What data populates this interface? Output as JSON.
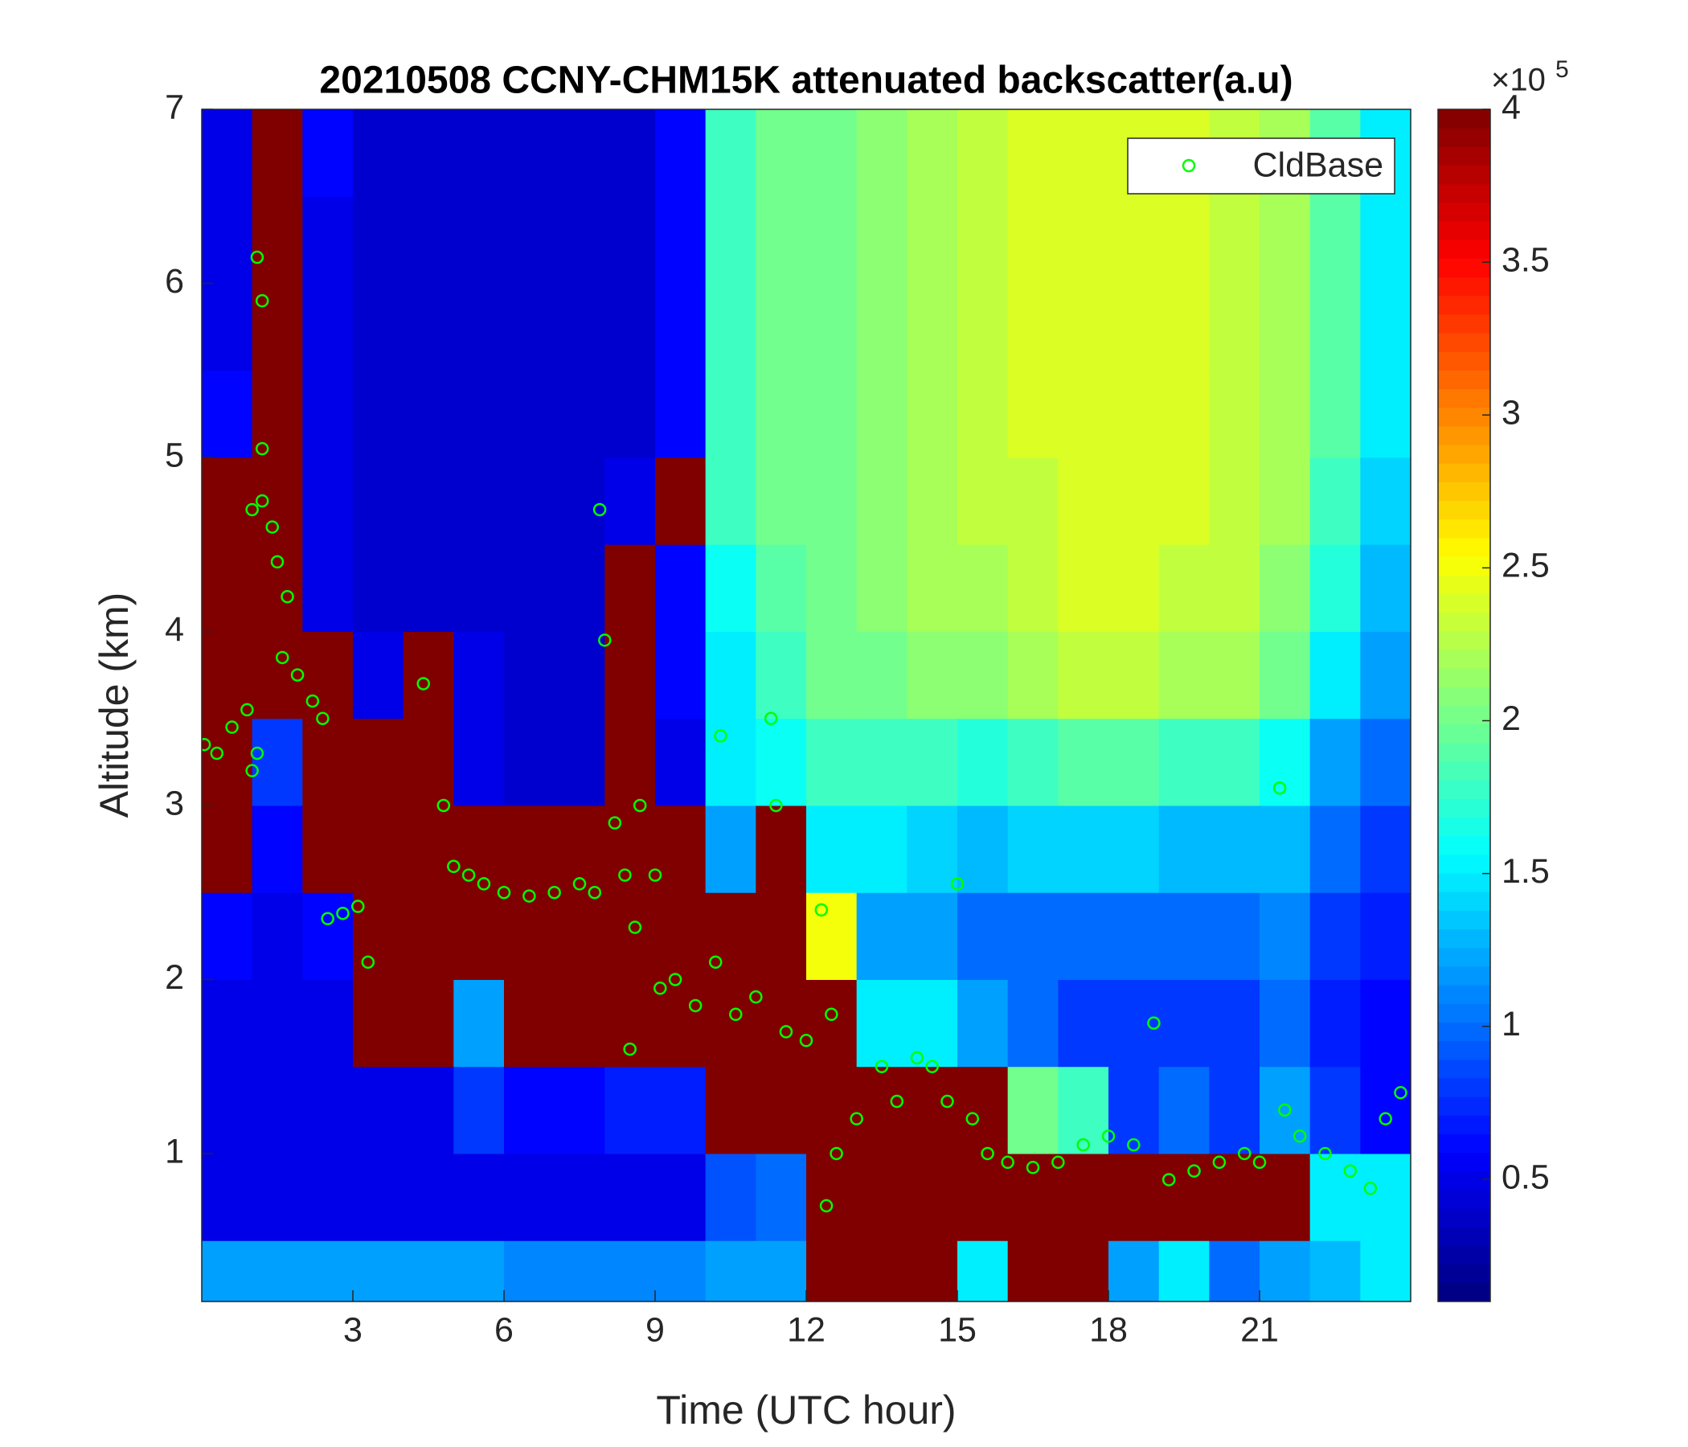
{
  "chart_data": {
    "type": "heatmap",
    "title": "20210508 CCNY-CHM15K attenuated backscatter(a.u)",
    "xlabel": "Time (UTC hour)",
    "ylabel": "Altitude (km)",
    "xlim": [
      0,
      24
    ],
    "ylim": [
      0.15,
      7
    ],
    "xticks": [
      3,
      6,
      9,
      12,
      15,
      18,
      21
    ],
    "yticks": [
      1,
      2,
      3,
      4,
      5,
      6,
      7
    ],
    "colormap": "jet",
    "clim": [
      0.1,
      4
    ],
    "colorbar_ticks": [
      0.5,
      1,
      1.5,
      2,
      2.5,
      3,
      3.5,
      4
    ],
    "colorbar_multiplier": "×10",
    "colorbar_exponent": "5",
    "legend": "upper right",
    "heatmap": {
      "time_edges": [
        0,
        1,
        2,
        3,
        4,
        5,
        6,
        7,
        8,
        9,
        10,
        11,
        12,
        13,
        14,
        15,
        16,
        17,
        18,
        19,
        20,
        21,
        22,
        23,
        24
      ],
      "altitude_edges": [
        0.15,
        0.5,
        1,
        1.5,
        2,
        2.5,
        3,
        3.5,
        4,
        4.5,
        5,
        5.5,
        6,
        6.5,
        7
      ],
      "values": [
        [
          1.2,
          0.5,
          0.5,
          0.5,
          0.6,
          4,
          4,
          4,
          4,
          4,
          0.6,
          0.5,
          0.5,
          0.5
        ],
        [
          1.2,
          0.5,
          0.5,
          0.5,
          0.5,
          0.6,
          0.8,
          4,
          4,
          4,
          4,
          4,
          4,
          4
        ],
        [
          1.2,
          0.5,
          0.5,
          0.5,
          0.6,
          4,
          4,
          4,
          0.5,
          0.5,
          0.5,
          0.5,
          0.5,
          0.6
        ],
        [
          1.2,
          0.5,
          0.5,
          4,
          4,
          4,
          4,
          0.5,
          0.4,
          0.4,
          0.4,
          0.4,
          0.4,
          0.4
        ],
        [
          1.2,
          0.5,
          0.5,
          4,
          4,
          4,
          4,
          4,
          0.4,
          0.4,
          0.4,
          0.4,
          0.4,
          0.4
        ],
        [
          1.2,
          0.5,
          0.8,
          1.2,
          4,
          4,
          0.5,
          0.5,
          0.4,
          0.4,
          0.4,
          0.4,
          0.4,
          0.4
        ],
        [
          1.1,
          0.5,
          0.6,
          4,
          4,
          4,
          0.4,
          0.4,
          0.4,
          0.4,
          0.4,
          0.4,
          0.4,
          0.4
        ],
        [
          1.1,
          0.5,
          0.6,
          4,
          4,
          4,
          0.4,
          0.4,
          0.4,
          0.4,
          0.4,
          0.4,
          0.4,
          0.4
        ],
        [
          1.1,
          0.5,
          0.7,
          4,
          4,
          4,
          4,
          4,
          4,
          0.5,
          0.4,
          0.4,
          0.4,
          0.4
        ],
        [
          1.1,
          0.5,
          0.7,
          4,
          4,
          4,
          0.5,
          0.6,
          0.6,
          4,
          0.6,
          0.6,
          0.6,
          0.6
        ],
        [
          1.2,
          0.9,
          4,
          4,
          4,
          1.2,
          1.5,
          1.5,
          1.6,
          1.8,
          1.8,
          1.8,
          1.8,
          1.8
        ],
        [
          1.2,
          1,
          4,
          4,
          4,
          4,
          1.6,
          1.8,
          1.9,
          2,
          2,
          2,
          2,
          2
        ],
        [
          4,
          4,
          4,
          4,
          2.5,
          1.5,
          1.8,
          2,
          2,
          2,
          2,
          2,
          2,
          2
        ],
        [
          4,
          4,
          4,
          1.5,
          1.2,
          1.5,
          1.8,
          2,
          2.1,
          2.1,
          2.1,
          2.1,
          2.1,
          2.1
        ],
        [
          4,
          4,
          4,
          1.5,
          1.2,
          1.4,
          1.8,
          2.1,
          2.2,
          2.2,
          2.2,
          2.2,
          2.2,
          2.2
        ],
        [
          1.5,
          4,
          4,
          1.2,
          1,
          1.3,
          1.7,
          2.1,
          2.2,
          2.3,
          2.3,
          2.3,
          2.3,
          2.3
        ],
        [
          4,
          4,
          2,
          1,
          1,
          1.4,
          1.8,
          2.2,
          2.3,
          2.3,
          2.4,
          2.4,
          2.4,
          2.4
        ],
        [
          4,
          4,
          1.8,
          0.8,
          1,
          1.4,
          1.9,
          2.3,
          2.4,
          2.4,
          2.4,
          2.4,
          2.4,
          2.4
        ],
        [
          1.2,
          4,
          0.8,
          0.8,
          1,
          1.4,
          1.9,
          2.3,
          2.4,
          2.4,
          2.4,
          2.4,
          2.4,
          2.4
        ],
        [
          1.5,
          4,
          1,
          0.8,
          1,
          1.3,
          1.8,
          2.2,
          2.3,
          2.4,
          2.4,
          2.4,
          2.4,
          2.4
        ],
        [
          1,
          4,
          0.8,
          0.8,
          1,
          1.3,
          1.8,
          2.2,
          2.3,
          2.3,
          2.3,
          2.3,
          2.3,
          2.3
        ],
        [
          1.2,
          4,
          1.2,
          1,
          1.1,
          1.3,
          1.6,
          2,
          2.1,
          2.2,
          2.2,
          2.2,
          2.2,
          2.2
        ],
        [
          1.3,
          1.5,
          0.8,
          0.7,
          0.8,
          1,
          1.2,
          1.5,
          1.7,
          1.8,
          1.9,
          1.9,
          1.9,
          1.9
        ],
        [
          1.5,
          1.5,
          0.6,
          0.6,
          0.7,
          0.8,
          1,
          1.2,
          1.3,
          1.4,
          1.5,
          1.5,
          1.5,
          1.5
        ]
      ]
    },
    "series": [
      {
        "name": "CldBase",
        "color": "#00ff00",
        "marker": "circle",
        "x": [
          0.05,
          0.3,
          0.6,
          0.9,
          1.0,
          1.1,
          1.0,
          1.2,
          1.4,
          1.5,
          1.7,
          1.6,
          1.9,
          2.2,
          2.4,
          1.1,
          1.2,
          1.2,
          2.5,
          2.8,
          3.1,
          3.3,
          4.4,
          4.8,
          5.0,
          5.3,
          5.6,
          6.0,
          6.5,
          7.0,
          7.5,
          7.8,
          7.9,
          8.0,
          8.2,
          8.4,
          8.6,
          8.7,
          9.0,
          8.5,
          9.1,
          9.4,
          9.8,
          10.2,
          10.3,
          10.6,
          11.0,
          11.3,
          11.4,
          11.6,
          12.0,
          12.3,
          12.5,
          12.6,
          12.4,
          13.0,
          13.5,
          13.8,
          14.2,
          14.5,
          14.8,
          15.0,
          15.3,
          15.6,
          16.0,
          16.5,
          17.0,
          17.5,
          18.0,
          18.5,
          18.9,
          19.2,
          19.7,
          20.2,
          20.7,
          21.0,
          21.4,
          21.5,
          21.8,
          22.3,
          22.8,
          23.2,
          23.5,
          23.8
        ],
        "values": [
          3.35,
          3.3,
          3.45,
          3.55,
          3.2,
          3.3,
          4.7,
          4.75,
          4.6,
          4.4,
          4.2,
          3.85,
          3.75,
          3.6,
          3.5,
          6.15,
          5.9,
          5.05,
          2.35,
          2.38,
          2.42,
          2.1,
          3.7,
          3.0,
          2.65,
          2.6,
          2.55,
          2.5,
          2.48,
          2.5,
          2.55,
          2.5,
          4.7,
          3.95,
          2.9,
          2.6,
          2.3,
          3.0,
          2.6,
          1.6,
          1.95,
          2.0,
          1.85,
          2.1,
          3.4,
          1.8,
          1.9,
          3.5,
          3.0,
          1.7,
          1.65,
          2.4,
          1.8,
          1.0,
          0.7,
          1.2,
          1.5,
          1.3,
          1.55,
          1.5,
          1.3,
          2.55,
          1.2,
          1.0,
          0.95,
          0.92,
          0.95,
          1.05,
          1.1,
          1.05,
          1.75,
          0.85,
          0.9,
          0.95,
          1.0,
          0.95,
          3.1,
          1.25,
          1.1,
          1.0,
          0.9,
          0.8,
          1.2,
          1.35
        ]
      }
    ]
  }
}
